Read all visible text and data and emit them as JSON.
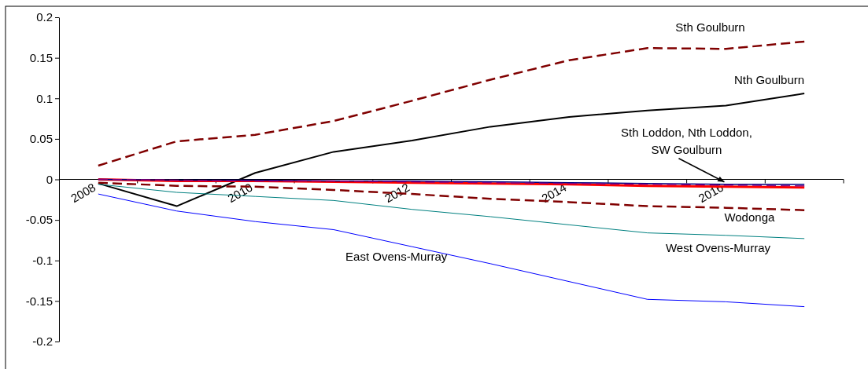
{
  "chart_data": {
    "type": "line",
    "categories": [
      "2008",
      null,
      "2010",
      null,
      "2012",
      null,
      "2014",
      null,
      "2016",
      null
    ],
    "ylim": [
      -0.2,
      0.2
    ],
    "yticks": [
      -0.2,
      -0.15,
      -0.1,
      -0.05,
      0,
      0.05,
      0.1,
      0.15,
      0.2
    ],
    "grid": false,
    "legend": false,
    "marker": "none",
    "series": [
      {
        "name": "Sth Goulburn",
        "color": "#800000",
        "line_style": "dashed",
        "values": [
          0.017,
          0.047,
          0.055,
          0.072,
          0.097,
          0.123,
          0.147,
          0.162,
          0.161,
          0.17
        ]
      },
      {
        "name": "Nth Goulburn",
        "color": "#000000",
        "line_style": "solid",
        "values": [
          -0.005,
          -0.033,
          0.008,
          0.034,
          0.048,
          0.065,
          0.077,
          0.085,
          0.091,
          0.106
        ]
      },
      {
        "color": "#ff0000",
        "line_style": "solid",
        "values": [
          0,
          -0.002,
          -0.002,
          -0.003,
          -0.004,
          -0.005,
          -0.006,
          -0.008,
          -0.009,
          -0.01
        ]
      },
      {
        "color": "#000080",
        "line_style": "solid",
        "values": [
          0,
          -0.001,
          -0.001,
          -0.002,
          -0.002,
          -0.003,
          -0.004,
          -0.005,
          -0.006,
          -0.006
        ]
      },
      {
        "color": "#800080",
        "line_style": "dashed",
        "values": [
          0,
          -0.001,
          -0.002,
          -0.002,
          -0.003,
          -0.004,
          -0.005,
          -0.006,
          -0.007,
          -0.008
        ]
      },
      {
        "name": "Wodonga",
        "color": "#800000",
        "line_style": "dashed",
        "values": [
          -0.004,
          -0.008,
          -0.009,
          -0.013,
          -0.018,
          -0.024,
          -0.028,
          -0.033,
          -0.035,
          -0.038
        ]
      },
      {
        "name": "West Ovens-Murray",
        "color": "#008080",
        "line_style": "solid",
        "values": [
          -0.006,
          -0.016,
          -0.021,
          -0.026,
          -0.037,
          -0.046,
          -0.056,
          -0.066,
          -0.069,
          -0.073
        ]
      },
      {
        "name": "East Ovens-Murray",
        "color": "#0000ff",
        "line_style": "solid",
        "values": [
          -0.018,
          -0.039,
          -0.052,
          -0.062,
          -0.083,
          -0.104,
          -0.126,
          -0.148,
          -0.151,
          -0.157
        ]
      }
    ],
    "annotations": [
      {
        "text": "Sth Loddon, Nth Loddon, SW Goulburn",
        "x": "2016",
        "y": -0.007
      }
    ]
  }
}
